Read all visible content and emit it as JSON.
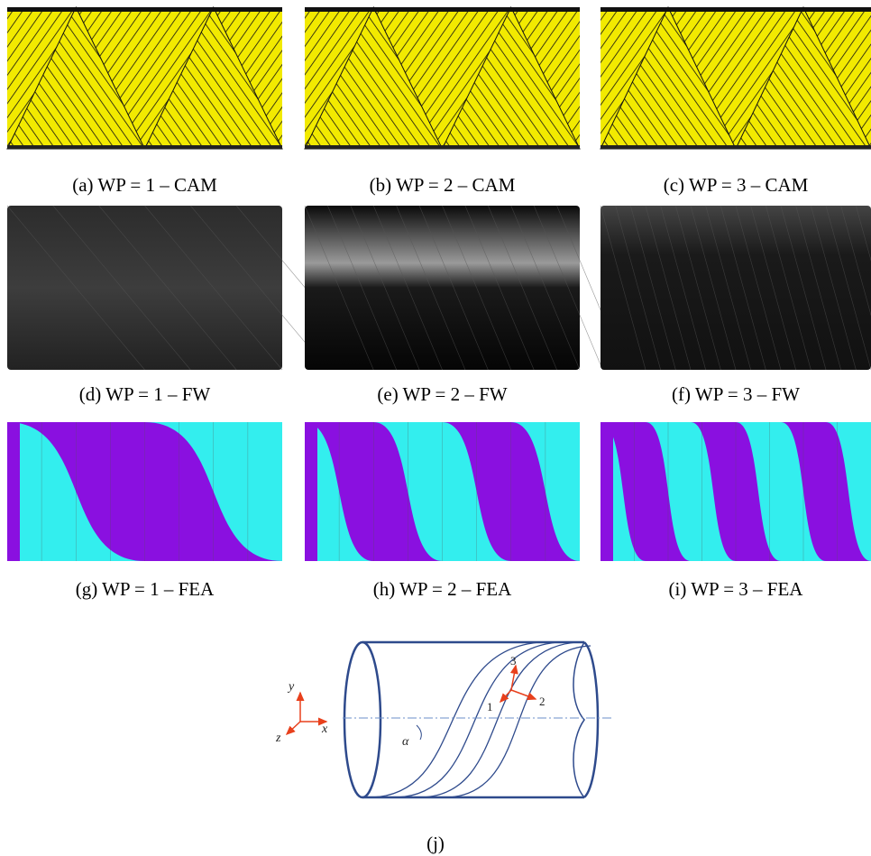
{
  "figure": {
    "panels": [
      {
        "caption": "(a) WP = 1 – CAM"
      },
      {
        "caption": "(b) WP = 2 – CAM"
      },
      {
        "caption": "(c) WP = 3 – CAM"
      },
      {
        "caption": "(d) WP = 1 – FW"
      },
      {
        "caption": "(e) WP = 2 – FW"
      },
      {
        "caption": "(f) WP = 3 – FW"
      },
      {
        "caption": "(g) WP = 1 – FEA"
      },
      {
        "caption": "(h) WP = 2 – FEA"
      },
      {
        "caption": "(i) WP = 3 – FEA"
      }
    ],
    "diagram": {
      "caption": "(j)",
      "axis_labels": [
        "y",
        "x",
        "z"
      ],
      "local_axes": [
        "1",
        "2",
        "3"
      ],
      "angle": "α"
    }
  }
}
